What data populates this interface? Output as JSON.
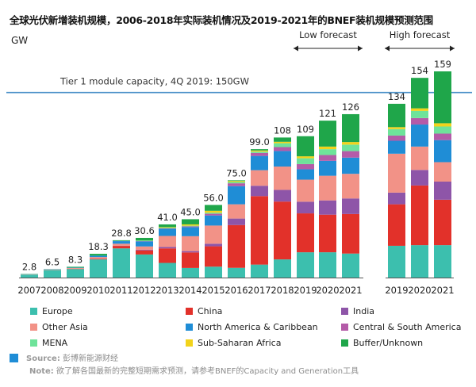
{
  "title": "全球光伏新增装机规模，2006-2018年实际装机情况及2019-2021年的BNEF装机规模预测范围",
  "unit": "GW",
  "source_label": "Source:",
  "source_text": "彭博新能源财经",
  "note_label": "Note:",
  "note_text": "欲了解各国最新的完整短期需求预测，请参考BNEF的Capacity and Generation工具",
  "colors": {
    "Europe": "#3cbfae",
    "China": "#e2312a",
    "India": "#8e55a8",
    "Other Asia": "#f29287",
    "North America & Caribbean": "#1f8dd6",
    "Central & South America": "#b45ba8",
    "MENA": "#6ee39a",
    "Sub-Saharan Africa": "#f2d31b",
    "Buffer/Unknown": "#1fa64a",
    "reference_line": "#4a90c8"
  },
  "chart_data": {
    "type": "bar",
    "stacked": true,
    "title": "全球光伏新增装机规模，2006-2018年实际装机情况及2019-2021年的BNEF装机规模预测范围",
    "ylabel": "GW",
    "ylim": [
      0,
      165
    ],
    "grid": false,
    "legend_position": "bottom",
    "categories": [
      "2007",
      "2008",
      "2009",
      "2010",
      "2011",
      "2012",
      "2013",
      "2014",
      "2015",
      "2016",
      "2017",
      "2018",
      "2019",
      "2020",
      "2021",
      "2019",
      "2020",
      "2021"
    ],
    "groups": [
      {
        "label": "Low forecast",
        "categories": [
          12,
          13,
          14
        ]
      },
      {
        "label": "High forecast",
        "categories": [
          15,
          16,
          17
        ]
      }
    ],
    "totals": [
      2.8,
      6.5,
      8.3,
      18.3,
      28.8,
      30.6,
      41.0,
      45.0,
      56.0,
      75.0,
      99.0,
      108,
      109,
      121,
      126,
      134,
      154,
      159
    ],
    "total_labels": [
      "2.8",
      "6.5",
      "8.3",
      "18.3",
      "28.8",
      "30.6",
      "41.0",
      "45.0",
      "56.0",
      "75.0",
      "99.0",
      "108",
      "109",
      "121",
      "126",
      "134",
      "154",
      "159"
    ],
    "series": [
      {
        "name": "Europe",
        "values": [
          2.2,
          5.8,
          6.6,
          14.0,
          22.5,
          17.8,
          11.3,
          7.4,
          8.4,
          7.5,
          10.0,
          14.0,
          19.5,
          19.5,
          18.5,
          24.5,
          25.0,
          25.0
        ]
      },
      {
        "name": "China",
        "values": [
          0.0,
          0.1,
          0.2,
          0.5,
          1.9,
          3.2,
          11.2,
          12.0,
          15.7,
          33.0,
          52.8,
          44.6,
          30.0,
          29.0,
          30.5,
          32.0,
          46.0,
          35.0
        ]
      },
      {
        "name": "India",
        "values": [
          0.0,
          0.0,
          0.0,
          0.1,
          0.1,
          0.5,
          1.1,
          1.0,
          2.0,
          5.0,
          8.0,
          9.0,
          9.0,
          11.0,
          12.0,
          9.0,
          12.0,
          14.0
        ]
      },
      {
        "name": "Other Asia",
        "values": [
          0.2,
          0.3,
          0.6,
          1.2,
          1.6,
          2.5,
          8.5,
          11.5,
          14.0,
          11.0,
          12.0,
          18.0,
          17.0,
          19.0,
          19.0,
          30.0,
          18.0,
          15.0
        ]
      },
      {
        "name": "North America & Caribbean",
        "values": [
          0.2,
          0.2,
          0.3,
          1.1,
          2.0,
          3.9,
          5.5,
          7.0,
          7.8,
          14.0,
          11.0,
          12.0,
          8.0,
          11.5,
          12.5,
          10.0,
          17.0,
          17.0
        ]
      },
      {
        "name": "Central & South America",
        "values": [
          0.0,
          0.0,
          0.0,
          0.0,
          0.1,
          0.2,
          0.3,
          0.6,
          1.3,
          2.2,
          2.3,
          3.0,
          4.0,
          4.5,
          5.0,
          4.0,
          5.0,
          5.0
        ]
      },
      {
        "name": "MENA",
        "values": [
          0.0,
          0.0,
          0.0,
          0.0,
          0.1,
          0.4,
          0.5,
          0.5,
          0.8,
          1.0,
          1.0,
          3.0,
          4.5,
          4.5,
          5.0,
          5.0,
          5.5,
          5.5
        ]
      },
      {
        "name": "Sub-Saharan Africa",
        "values": [
          0.0,
          0.0,
          0.0,
          0.0,
          0.0,
          0.1,
          0.5,
          1.0,
          1.5,
          0.8,
          0.9,
          1.1,
          1.5,
          2.0,
          2.0,
          1.5,
          2.0,
          2.5
        ]
      },
      {
        "name": "Buffer/Unknown",
        "values": [
          0.2,
          0.1,
          0.6,
          1.4,
          0.5,
          2.0,
          2.1,
          4.0,
          4.5,
          0.5,
          1.0,
          3.3,
          15.5,
          20.0,
          21.5,
          18.0,
          23.5,
          40.0
        ]
      }
    ],
    "reference_line": {
      "value": 150,
      "label": "Tier 1 module capacity, 4Q 2019: 150GW"
    }
  }
}
